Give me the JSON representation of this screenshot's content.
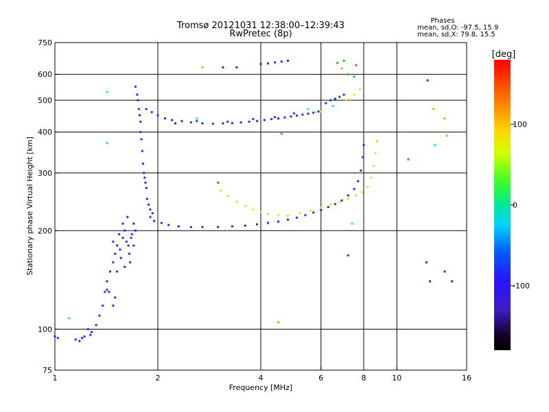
{
  "chart_data": {
    "type": "scatter",
    "title": "Tromsø 20121031 12:38:00–12:39:43",
    "subtitle": "RwPretec (8p)",
    "xlabel": "Frequency [MHz]",
    "ylabel": "Stationary phase Virtual Height [km]",
    "x_scale": "log",
    "y_scale": "log",
    "xlim": [
      1,
      16
    ],
    "ylim": [
      75,
      750
    ],
    "x_ticks": [
      1,
      2,
      4,
      6,
      8,
      10,
      16
    ],
    "y_ticks": [
      75,
      100,
      200,
      300,
      400,
      500,
      600,
      750
    ],
    "x_grid": [
      2,
      4,
      6,
      8,
      10
    ],
    "y_grid": [
      100,
      200,
      300,
      400,
      500,
      600
    ],
    "phase_info": {
      "heading": "Phases",
      "line1": "mean, sd,O: -97.5, 15.9",
      "line2": "mean, sd,X:  79.8, 15.5"
    },
    "colorbar": {
      "label": "[deg]",
      "range": [
        -180,
        180
      ],
      "ticks": [
        100,
        0,
        -100
      ],
      "tick_labels": [
        "100",
        "0",
        "-100"
      ]
    },
    "series": [
      {
        "color": "#1e32ff",
        "points": [
          [
            1.9,
            220
          ],
          [
            1.95,
            214
          ],
          [
            2.05,
            211
          ],
          [
            2.15,
            208
          ],
          [
            2.3,
            206
          ],
          [
            2.5,
            205
          ],
          [
            2.7,
            205
          ],
          [
            3.0,
            205
          ],
          [
            3.3,
            206
          ],
          [
            3.6,
            207
          ],
          [
            3.9,
            209
          ],
          [
            4.2,
            211
          ],
          [
            4.5,
            213
          ],
          [
            4.8,
            216
          ],
          [
            5.1,
            219
          ],
          [
            5.4,
            223
          ],
          [
            5.7,
            227
          ],
          [
            6.0,
            231
          ],
          [
            6.3,
            236
          ],
          [
            6.6,
            241
          ],
          [
            6.9,
            247
          ],
          [
            7.2,
            256
          ],
          [
            7.5,
            268
          ],
          [
            7.7,
            283
          ],
          [
            7.85,
            305
          ],
          [
            7.95,
            335
          ],
          [
            8.0,
            365
          ],
          [
            1.86,
            250
          ],
          [
            1.88,
            240
          ],
          [
            1.9,
            232
          ],
          [
            1.93,
            226
          ],
          [
            1.78,
            400
          ],
          [
            1.79,
            380
          ],
          [
            1.8,
            350
          ],
          [
            1.81,
            320
          ],
          [
            1.82,
            300
          ],
          [
            1.83,
            290
          ],
          [
            1.84,
            280
          ],
          [
            1.85,
            270
          ],
          [
            1.72,
            550
          ],
          [
            1.74,
            520
          ],
          [
            1.75,
            500
          ],
          [
            1.76,
            470
          ],
          [
            1.77,
            450
          ],
          [
            1.78,
            430
          ],
          [
            1.85,
            470
          ],
          [
            1.92,
            460
          ],
          [
            2.0,
            450
          ],
          [
            2.1,
            440
          ],
          [
            2.2,
            435
          ],
          [
            2.35,
            432
          ],
          [
            2.5,
            428
          ],
          [
            2.7,
            425
          ],
          [
            2.9,
            424
          ],
          [
            3.1,
            425
          ],
          [
            3.3,
            426
          ],
          [
            3.5,
            428
          ],
          [
            3.7,
            430
          ],
          [
            3.9,
            432
          ],
          [
            4.1,
            435
          ],
          [
            4.3,
            438
          ],
          [
            4.5,
            440
          ],
          [
            4.7,
            443
          ],
          [
            4.9,
            446
          ],
          [
            5.1,
            449
          ],
          [
            5.3,
            452
          ],
          [
            5.5,
            455
          ],
          [
            5.7,
            458
          ],
          [
            5.9,
            462
          ],
          [
            2.25,
            425
          ],
          [
            2.6,
            432
          ],
          [
            3.2,
            430
          ],
          [
            3.8,
            438
          ],
          [
            4.4,
            444
          ],
          [
            5.0,
            456
          ],
          [
            1.25,
            100
          ],
          [
            1.28,
            98
          ],
          [
            1.32,
            103
          ],
          [
            1.35,
            110
          ],
          [
            1.38,
            118
          ],
          [
            1.4,
            130
          ],
          [
            1.42,
            140
          ],
          [
            1.45,
            150
          ],
          [
            1.48,
            160
          ],
          [
            1.5,
            170
          ],
          [
            1.52,
            180
          ],
          [
            1.55,
            175
          ],
          [
            1.58,
            190
          ],
          [
            1.6,
            200
          ],
          [
            1.62,
            185
          ],
          [
            1.65,
            170
          ],
          [
            1.68,
            195
          ],
          [
            1.7,
            210
          ],
          [
            1.72,
            200
          ],
          [
            1.52,
            150
          ],
          [
            1.56,
            165
          ],
          [
            1.6,
            155
          ],
          [
            1.64,
            180
          ],
          [
            1.66,
            160
          ],
          [
            1.58,
            210
          ],
          [
            1.63,
            220
          ],
          [
            1.67,
            190
          ],
          [
            1.48,
            185
          ],
          [
            1.54,
            195
          ],
          [
            1.7,
            180
          ],
          [
            1.15,
            93
          ],
          [
            1.18,
            92
          ],
          [
            1.2,
            94
          ],
          [
            1.22,
            95
          ],
          [
            1.27,
            96
          ],
          [
            1.0,
            95
          ],
          [
            1.02,
            94
          ],
          [
            1.42,
            132
          ],
          [
            1.44,
            130
          ],
          [
            1.48,
            118
          ],
          [
            1.5,
            125
          ],
          [
            4.0,
            645
          ],
          [
            4.2,
            648
          ],
          [
            4.4,
            652
          ],
          [
            4.6,
            656
          ],
          [
            4.8,
            660
          ],
          [
            3.1,
            630
          ],
          [
            3.4,
            630
          ],
          [
            6.2,
            490
          ],
          [
            6.4,
            500
          ],
          [
            6.6,
            505
          ],
          [
            6.8,
            512
          ],
          [
            7.0,
            520
          ],
          [
            12.2,
            160
          ],
          [
            12.5,
            140
          ],
          [
            13.8,
            150
          ],
          [
            14.5,
            140
          ],
          [
            12.3,
            575
          ],
          [
            7.2,
            168
          ]
        ]
      },
      {
        "color": "#c8f028",
        "points": [
          [
            3.05,
            265
          ],
          [
            3.2,
            255
          ],
          [
            3.4,
            245
          ],
          [
            3.6,
            238
          ],
          [
            3.8,
            232
          ],
          [
            4.0,
            228
          ],
          [
            4.2,
            225
          ],
          [
            4.5,
            223
          ],
          [
            4.8,
            222
          ],
          [
            5.2,
            226
          ],
          [
            5.6,
            230
          ],
          [
            6.0,
            235
          ],
          [
            6.4,
            240
          ],
          [
            6.8,
            245
          ],
          [
            7.2,
            250
          ],
          [
            7.6,
            256
          ],
          [
            7.9,
            262
          ],
          [
            8.2,
            272
          ],
          [
            8.4,
            290
          ],
          [
            8.55,
            315
          ],
          [
            8.65,
            345
          ],
          [
            8.75,
            375
          ],
          [
            5.8,
            460
          ],
          [
            6.0,
            462
          ],
          [
            7.1,
            500
          ],
          [
            7.5,
            520
          ],
          [
            7.8,
            540
          ]
        ]
      },
      {
        "color": "#ffa028",
        "points": [
          [
            2.7,
            630
          ],
          [
            6.9,
            625
          ],
          [
            7.3,
            500
          ],
          [
            4.5,
            105
          ],
          [
            12.8,
            470
          ],
          [
            14.0,
            390
          ],
          [
            13.8,
            440
          ]
        ]
      },
      {
        "color": "#28e0e8",
        "points": [
          [
            1.42,
            530
          ],
          [
            2.6,
            440
          ],
          [
            5.5,
            470
          ],
          [
            6.5,
            480
          ],
          [
            12.9,
            365
          ],
          [
            1.42,
            370
          ],
          [
            7.4,
            210
          ],
          [
            1.1,
            108
          ]
        ]
      },
      {
        "color": "#30c828",
        "points": [
          [
            4.6,
            395
          ],
          [
            6.7,
            650
          ],
          [
            7.0,
            660
          ],
          [
            7.2,
            600
          ],
          [
            7.5,
            590
          ]
        ]
      },
      {
        "color": "#ff3c28",
        "points": [
          [
            7.6,
            640
          ],
          [
            10.8,
            330
          ],
          [
            3.0,
            280
          ]
        ]
      }
    ]
  }
}
